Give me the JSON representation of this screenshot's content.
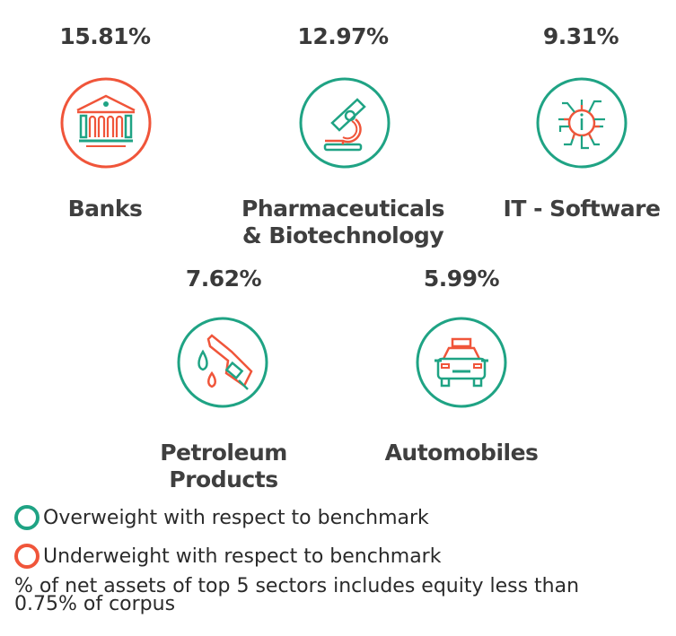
{
  "colors": {
    "overweight": "#1fa384",
    "underweight": "#f0553a",
    "text": "#3a3a3a"
  },
  "sectors": [
    {
      "name": "Banks",
      "percent": "15.81%",
      "icon": "bank-icon",
      "weight": "underweight"
    },
    {
      "name_line1": "Pharmaceuticals",
      "name_line2": "& Biotechnology",
      "percent": "12.97%",
      "icon": "microscope-icon",
      "weight": "overweight"
    },
    {
      "name": "IT - Software",
      "percent": "9.31%",
      "icon": "chip-icon",
      "weight": "overweight"
    },
    {
      "name_line1": "Petroleum",
      "name_line2": "Products",
      "percent": "7.62%",
      "icon": "fuel-nozzle-icon",
      "weight": "overweight"
    },
    {
      "name": "Automobiles",
      "percent": "5.99%",
      "icon": "car-icon",
      "weight": "overweight"
    }
  ],
  "legend": {
    "overweight": "Overweight with respect to benchmark",
    "underweight": "Underweight with respect to benchmark"
  },
  "footnote": {
    "line1": "% of net assets of top 5 sectors includes equity less than",
    "line2": "0.75% of corpus"
  }
}
